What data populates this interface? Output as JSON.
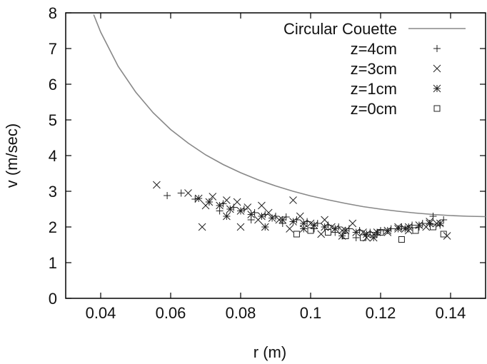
{
  "chart_data": {
    "type": "scatter",
    "xlabel": "r (m)",
    "ylabel": "v (m/sec)",
    "xlim": [
      0.03,
      0.15
    ],
    "ylim": [
      0,
      8
    ],
    "xticks": [
      "0.04",
      "0.06",
      "0.08",
      "0.1",
      "0.12",
      "0.14"
    ],
    "xtick_values": [
      0.04,
      0.06,
      0.08,
      0.1,
      0.12,
      0.14
    ],
    "yticks": [
      "0",
      "1",
      "2",
      "3",
      "4",
      "5",
      "6",
      "7",
      "8"
    ],
    "ytick_values": [
      0,
      1,
      2,
      3,
      4,
      5,
      6,
      7,
      8
    ],
    "grid": false,
    "legend_position": "top-right",
    "colors": {
      "line": "#888888",
      "marker": "#222222",
      "axis": "#000000"
    },
    "series": [
      {
        "name": "Circular Couette",
        "kind": "line",
        "marker": "line",
        "x": [
          0.038,
          0.04,
          0.045,
          0.05,
          0.055,
          0.06,
          0.065,
          0.07,
          0.075,
          0.08,
          0.085,
          0.09,
          0.095,
          0.1,
          0.105,
          0.11,
          0.115,
          0.12,
          0.125,
          0.13,
          0.135,
          0.14,
          0.145,
          0.15
        ],
        "y": [
          7.95,
          7.46,
          6.5,
          5.78,
          5.2,
          4.73,
          4.35,
          4.02,
          3.75,
          3.52,
          3.32,
          3.15,
          3.0,
          2.87,
          2.76,
          2.66,
          2.57,
          2.5,
          2.44,
          2.39,
          2.35,
          2.32,
          2.3,
          2.29
        ]
      },
      {
        "name": "z=4cm",
        "kind": "points",
        "marker": "plus",
        "x": [
          0.059,
          0.063,
          0.067,
          0.071,
          0.075,
          0.078,
          0.081,
          0.084,
          0.087,
          0.09,
          0.093,
          0.096,
          0.099,
          0.102,
          0.105,
          0.108,
          0.111,
          0.114,
          0.117,
          0.12,
          0.123,
          0.126,
          0.129,
          0.132,
          0.135,
          0.138,
          0.074,
          0.083,
          0.092,
          0.101,
          0.107,
          0.113,
          0.119,
          0.131,
          0.137
        ],
        "y": [
          2.88,
          2.95,
          2.78,
          2.7,
          2.65,
          2.55,
          2.5,
          2.4,
          2.35,
          2.3,
          2.28,
          2.2,
          2.15,
          2.1,
          2.05,
          2.0,
          1.95,
          1.9,
          1.85,
          1.9,
          1.95,
          2.0,
          2.05,
          2.1,
          2.3,
          2.2,
          2.45,
          2.2,
          2.1,
          1.95,
          1.85,
          1.7,
          1.8,
          2.0,
          2.05
        ]
      },
      {
        "name": "z=3cm",
        "kind": "points",
        "marker": "x",
        "x": [
          0.056,
          0.065,
          0.069,
          0.072,
          0.076,
          0.079,
          0.082,
          0.086,
          0.088,
          0.091,
          0.095,
          0.097,
          0.1,
          0.104,
          0.106,
          0.109,
          0.112,
          0.115,
          0.118,
          0.122,
          0.125,
          0.128,
          0.133,
          0.136,
          0.139,
          0.07,
          0.08,
          0.085,
          0.094,
          0.103,
          0.116,
          0.134
        ],
        "y": [
          3.18,
          2.95,
          2.0,
          2.85,
          2.75,
          2.7,
          2.55,
          2.6,
          2.4,
          2.2,
          2.75,
          2.3,
          2.1,
          2.2,
          2.0,
          1.9,
          2.1,
          1.85,
          1.8,
          1.85,
          2.0,
          1.9,
          2.0,
          2.1,
          1.75,
          2.6,
          2.0,
          2.2,
          1.95,
          1.8,
          1.7,
          2.15
        ]
      },
      {
        "name": "z=1cm",
        "kind": "points",
        "marker": "star",
        "x": [
          0.068,
          0.071,
          0.074,
          0.077,
          0.08,
          0.083,
          0.086,
          0.089,
          0.092,
          0.095,
          0.098,
          0.101,
          0.104,
          0.107,
          0.11,
          0.113,
          0.116,
          0.119,
          0.122,
          0.125,
          0.128,
          0.131,
          0.134,
          0.137,
          0.076,
          0.087,
          0.098,
          0.109,
          0.118,
          0.127
        ],
        "y": [
          2.8,
          2.7,
          2.6,
          2.5,
          2.45,
          2.35,
          2.3,
          2.25,
          2.2,
          2.15,
          2.1,
          2.05,
          2.0,
          1.95,
          1.9,
          1.85,
          1.8,
          1.85,
          1.9,
          1.95,
          2.0,
          2.05,
          2.1,
          2.1,
          2.3,
          2.0,
          1.95,
          1.75,
          1.7,
          1.95
        ]
      },
      {
        "name": "z=0cm",
        "kind": "points",
        "marker": "square",
        "x": [
          0.096,
          0.1,
          0.105,
          0.11,
          0.115,
          0.12,
          0.126,
          0.13,
          0.135,
          0.138
        ],
        "y": [
          1.8,
          1.9,
          1.85,
          1.75,
          1.7,
          1.85,
          1.65,
          1.9,
          2.0,
          1.8
        ]
      }
    ]
  }
}
